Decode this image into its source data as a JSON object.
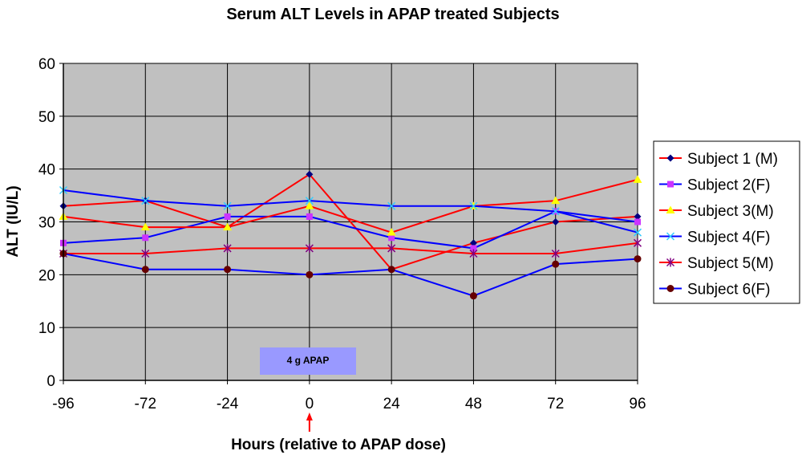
{
  "chart_data": {
    "type": "line",
    "title": "Serum ALT Levels in APAP treated Subjects",
    "xlabel": "Hours (relative to APAP dose)",
    "ylabel": "ALT (IU/L)",
    "categories": [
      "-96",
      "-72",
      "-24",
      "0",
      "24",
      "48",
      "72",
      "96"
    ],
    "ylim": [
      0,
      60
    ],
    "yticks": [
      0,
      10,
      20,
      30,
      40,
      50,
      60
    ],
    "grid": true,
    "legend_position": "right",
    "plot_background": "#c0c0c0",
    "annotation": {
      "text": "4 g APAP",
      "color": "#9999ff",
      "arrow_color": "#ff0000"
    },
    "series": [
      {
        "name": "Subject 1 (M)",
        "color": "#ff0000",
        "marker_color": "#000080",
        "marker": "diamond",
        "values": [
          33,
          34,
          29,
          39,
          21,
          26,
          30,
          31
        ]
      },
      {
        "name": "Subject 2(F)",
        "color": "#0000ff",
        "marker_color": "#cc33ff",
        "marker": "square",
        "values": [
          26,
          27,
          31,
          31,
          27,
          25,
          32,
          30
        ]
      },
      {
        "name": "Subject 3(M)",
        "color": "#ff0000",
        "marker_color": "#ffff00",
        "marker": "triangle",
        "values": [
          31,
          29,
          29,
          33,
          28,
          33,
          34,
          38
        ]
      },
      {
        "name": "Subject 4(F)",
        "color": "#0000ff",
        "marker_color": "#33ccff",
        "marker": "x",
        "values": [
          36,
          34,
          33,
          34,
          33,
          33,
          32,
          28
        ]
      },
      {
        "name": "Subject 5(M)",
        "color": "#ff0000",
        "marker_color": "#800080",
        "marker": "star",
        "values": [
          24,
          24,
          25,
          25,
          25,
          24,
          24,
          26
        ]
      },
      {
        "name": "Subject 6(F)",
        "color": "#0000ff",
        "marker_color": "#660000",
        "marker": "circle",
        "values": [
          24,
          21,
          21,
          20,
          21,
          16,
          22,
          23
        ]
      }
    ]
  }
}
